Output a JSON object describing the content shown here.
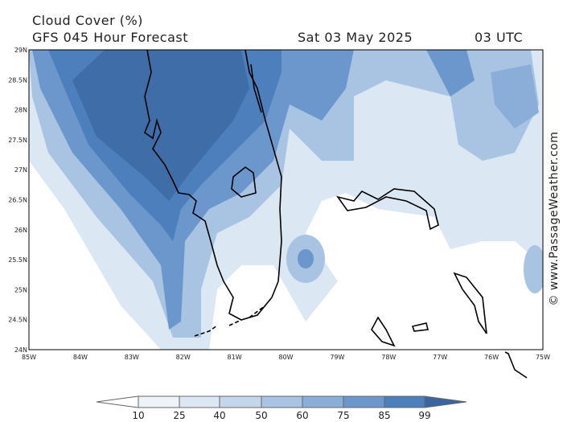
{
  "header": {
    "title": "Cloud Cover (%)",
    "subtitle": "GFS 045 Hour Forecast",
    "date": "Sat 03 May 2025",
    "time": "03 UTC"
  },
  "map": {
    "lon_labels": [
      "85W",
      "84W",
      "83W",
      "82W",
      "81W",
      "80W",
      "79W",
      "78W",
      "77W",
      "76W",
      "75W"
    ],
    "lat_labels": [
      "29N",
      "28.5N",
      "28N",
      "27.5N",
      "27N",
      "26.5N",
      "26N",
      "25.5N",
      "25N",
      "24.5N",
      "24N"
    ]
  },
  "legend": {
    "labels": [
      10,
      25,
      40,
      50,
      60,
      75,
      85,
      99
    ]
  },
  "credit": "© www.PassageWeather.com"
}
